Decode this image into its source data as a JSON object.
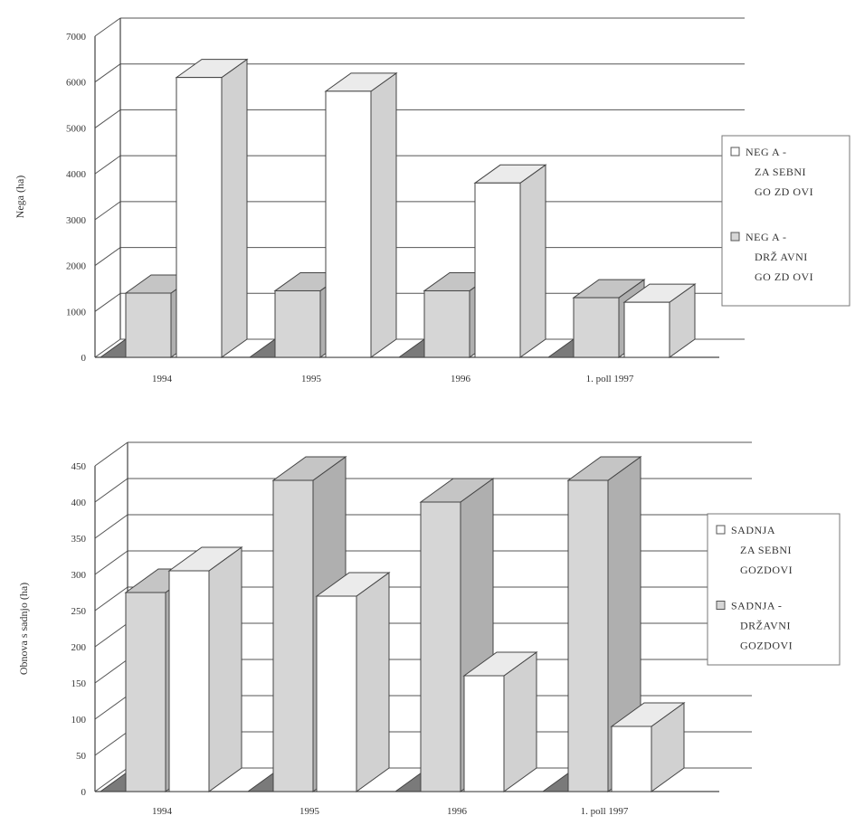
{
  "chart_data": [
    {
      "type": "bar",
      "ylabel": "Nega (ha)",
      "ylim": [
        0,
        7000
      ],
      "yticks": [
        0,
        1000,
        2000,
        3000,
        4000,
        5000,
        6000,
        7000
      ],
      "categories": [
        "1994",
        "1995",
        "1996",
        "1. poll 1997"
      ],
      "series": [
        {
          "name": "NEGA - DRŽAVNI GOZDOVI",
          "values": [
            1400,
            1450,
            1450,
            1300
          ]
        },
        {
          "name": "NEGA - ZASEBNI GOZDOVI",
          "values": [
            6100,
            5800,
            3800,
            1200
          ]
        }
      ],
      "legend": [
        [
          "NEG A -",
          "ZA SEBNI",
          "GO ZD OVI"
        ],
        [
          "NEG A -",
          "DRŽ AVNI",
          "GO ZD OVI"
        ]
      ],
      "legend_position": "right",
      "grid": true,
      "style": "3d"
    },
    {
      "type": "bar",
      "ylabel": "Obnova s sadnjo (ha)",
      "ylim": [
        0,
        450
      ],
      "yticks": [
        0,
        50,
        100,
        150,
        200,
        250,
        300,
        350,
        400,
        450
      ],
      "categories": [
        "1994",
        "1995",
        "1996",
        "1. poll 1997"
      ],
      "series": [
        {
          "name": "SADNJA - DRŽAVNI GOZDOVI",
          "values": [
            275,
            430,
            400,
            430
          ]
        },
        {
          "name": "SADNJA ZASEBNI GOZDOVI",
          "values": [
            305,
            270,
            160,
            90
          ]
        }
      ],
      "legend": [
        [
          "SADNJA",
          "ZA SEBNI",
          "GOZDOVI"
        ],
        [
          "SADNJA -",
          "DRŽAVNI",
          "GOZDOVI"
        ]
      ],
      "legend_position": "right",
      "grid": true,
      "style": "3d"
    }
  ],
  "colors": {
    "state_fill": "#d6d6d6",
    "private_fill": "#ffffff",
    "floor_fill": "#7a7a7a",
    "line": "#444444"
  }
}
